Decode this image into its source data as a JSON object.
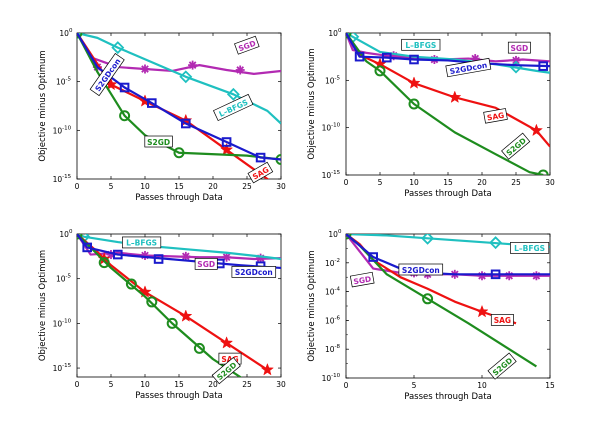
{
  "chart_data": [
    {
      "type": "line",
      "title": "",
      "xlabel": "Passes through Data",
      "ylabel": "Objective minus Optimum",
      "xlim": [
        0,
        30
      ],
      "ylim_log10": [
        -15,
        0
      ],
      "y_scale": "log",
      "xticks": [
        "0",
        "5",
        "10",
        "15",
        "20",
        "25",
        "30"
      ],
      "yticks": [
        {
          "exp": 0,
          "text": "10",
          "sup": "0"
        },
        {
          "exp": -5,
          "text": "10",
          "sup": "-5"
        },
        {
          "exp": -10,
          "text": "10",
          "sup": "-10"
        },
        {
          "exp": -15,
          "text": "10",
          "sup": "-15"
        }
      ],
      "series": [
        {
          "name": "SGD",
          "color": "#b22ab2",
          "marker": "asterisk",
          "x": [
            0,
            2,
            6,
            10,
            14,
            18,
            22,
            26,
            30
          ],
          "y_log10": [
            0,
            -2.5,
            -3.5,
            -3.7,
            -3.9,
            -3.3,
            -3.8,
            -4.2,
            -3.9
          ],
          "mx": [
            3,
            10,
            17,
            24
          ],
          "my": [
            -3.5,
            -3.7,
            -3.3,
            -3.8
          ]
        },
        {
          "name": "L-BFGS",
          "color": "#1fc0c0",
          "marker": "diamond",
          "x": [
            0,
            3,
            6,
            16,
            23,
            28,
            30
          ],
          "y_log10": [
            0,
            -0.5,
            -1.5,
            -4.5,
            -6.3,
            -8.0,
            -9.3
          ],
          "mx": [
            0,
            6,
            16,
            23
          ],
          "my": [
            0,
            -1.5,
            -4.5,
            -6.3
          ]
        },
        {
          "name": "SAG",
          "color": "#ee1111",
          "marker": "star",
          "x": [
            0,
            5,
            10,
            16,
            22,
            30
          ],
          "y_log10": [
            0,
            -5.3,
            -7.0,
            -9.0,
            -12.0,
            -16.0
          ],
          "mx": [
            5,
            10,
            16,
            22
          ],
          "my": [
            -5.3,
            -7.0,
            -9.0,
            -12.0
          ]
        },
        {
          "name": "S2GD",
          "color": "#1e8c1e",
          "marker": "circle",
          "x": [
            0,
            3,
            7,
            10,
            15,
            25,
            30
          ],
          "y_log10": [
            0,
            -4.0,
            -8.5,
            -10.5,
            -12.3,
            -12.6,
            -13.0
          ],
          "mx": [
            0,
            7,
            15,
            30
          ],
          "my": [
            0,
            -8.5,
            -12.3,
            -13.0
          ]
        },
        {
          "name": "S2GDcon",
          "color": "#1a1acc",
          "marker": "square",
          "x": [
            0,
            3,
            7,
            11,
            16,
            22,
            27,
            30
          ],
          "y_log10": [
            0,
            -3.5,
            -5.6,
            -7.2,
            -9.3,
            -11.2,
            -12.8,
            -13.0
          ],
          "mx": [
            7,
            11,
            16,
            22,
            27
          ],
          "my": [
            -5.6,
            -7.2,
            -9.3,
            -11.2,
            -12.8
          ]
        }
      ],
      "labels": [
        {
          "text": "SGD",
          "series": "SGD",
          "x": 25,
          "y": -1.3,
          "angle": -20
        },
        {
          "text": "L–BFGS",
          "series": "L-BFGS",
          "x": 23,
          "y": -7.7,
          "angle": -25
        },
        {
          "text": "S2GDcon",
          "series": "S2GDcon",
          "x": 4.5,
          "y": -4.3,
          "angle": -55
        },
        {
          "text": "S2GD",
          "series": "S2GD",
          "x": 12,
          "y": -11.2,
          "angle": 0
        },
        {
          "text": "SAG",
          "series": "SAG",
          "x": 27,
          "y": -14.5,
          "angle": -30
        }
      ]
    },
    {
      "type": "line",
      "title": "",
      "xlabel": "Passes through Data",
      "ylabel": "Objective minus Optimum",
      "xlim": [
        0,
        30
      ],
      "ylim_log10": [
        -15,
        0
      ],
      "y_scale": "log",
      "xticks": [
        "0",
        "5",
        "10",
        "15",
        "20",
        "25",
        "30"
      ],
      "yticks": [
        {
          "exp": 0,
          "text": "10",
          "sup": "0"
        },
        {
          "exp": -5,
          "text": "10",
          "sup": "-5"
        },
        {
          "exp": -10,
          "text": "10",
          "sup": "-10"
        },
        {
          "exp": -15,
          "text": "10",
          "sup": "-15"
        }
      ],
      "series": [
        {
          "name": "SGD",
          "color": "#b22ab2",
          "marker": "asterisk",
          "x": [
            0,
            1,
            3,
            6,
            10,
            14,
            18,
            22,
            26,
            30
          ],
          "y_log10": [
            0,
            -1.8,
            -2.1,
            -2.4,
            -2.6,
            -2.8,
            -2.7,
            -3.0,
            -2.8,
            -3.0
          ],
          "mx": [
            7,
            13,
            19,
            25
          ],
          "my": [
            -2.4,
            -2.8,
            -2.7,
            -2.9
          ]
        },
        {
          "name": "L-BFGS",
          "color": "#1fc0c0",
          "marker": "diamond",
          "x": [
            0,
            1,
            5,
            10,
            16,
            22,
            28,
            30
          ],
          "y_log10": [
            0,
            -0.4,
            -2.0,
            -2.5,
            -2.8,
            -3.3,
            -4.0,
            -4.2
          ],
          "mx": [
            1,
            25
          ],
          "my": [
            -0.4,
            -3.6
          ]
        },
        {
          "name": "SAG",
          "color": "#ee1111",
          "marker": "star",
          "x": [
            0,
            2,
            5,
            10,
            16,
            22,
            28,
            30
          ],
          "y_log10": [
            0,
            -2.3,
            -3.3,
            -5.3,
            -6.8,
            -7.9,
            -10.3,
            -12.0
          ],
          "mx": [
            5,
            10,
            16,
            28
          ],
          "my": [
            -3.3,
            -5.3,
            -6.8,
            -10.3
          ]
        },
        {
          "name": "S2GD",
          "color": "#1e8c1e",
          "marker": "circle",
          "x": [
            0,
            3,
            5,
            10,
            16,
            22,
            27,
            29
          ],
          "y_log10": [
            0,
            -3.0,
            -4.0,
            -7.5,
            -10.5,
            -12.8,
            -14.7,
            -15.0
          ],
          "mx": [
            0,
            5,
            10,
            29
          ],
          "my": [
            0,
            -4.0,
            -7.5,
            -15.0
          ]
        },
        {
          "name": "S2GDcon",
          "color": "#1a1acc",
          "marker": "square",
          "x": [
            0,
            2,
            6,
            10,
            15,
            20,
            25,
            30
          ],
          "y_log10": [
            0,
            -2.5,
            -2.6,
            -2.8,
            -2.9,
            -3.2,
            -3.4,
            -3.5
          ],
          "mx": [
            2,
            6,
            10,
            29
          ],
          "my": [
            -2.5,
            -2.6,
            -2.8,
            -3.5
          ]
        }
      ],
      "labels": [
        {
          "text": "L–BFGS",
          "series": "L-BFGS",
          "x": 11,
          "y": -1.3,
          "angle": 0
        },
        {
          "text": "SGD",
          "series": "SGD",
          "x": 25.5,
          "y": -1.6,
          "angle": 0
        },
        {
          "text": "S2GDcon",
          "series": "S2GDcon",
          "x": 18,
          "y": -3.7,
          "angle": -10
        },
        {
          "text": "SAG",
          "series": "SAG",
          "x": 22,
          "y": -8.8,
          "angle": -10
        },
        {
          "text": "S2GD",
          "series": "S2GD",
          "x": 25,
          "y": -12.0,
          "angle": -40
        }
      ]
    },
    {
      "type": "line",
      "title": "",
      "xlabel": "Passes through Data",
      "ylabel": "Objective minus Optimum",
      "xlim": [
        0,
        30
      ],
      "ylim_log10": [
        -16,
        0
      ],
      "y_scale": "log",
      "xticks": [
        "0",
        "5",
        "10",
        "15",
        "20",
        "25",
        "30"
      ],
      "yticks": [
        {
          "exp": 0,
          "text": "10",
          "sup": "0"
        },
        {
          "exp": -5,
          "text": "10",
          "sup": "-5"
        },
        {
          "exp": -10,
          "text": "10",
          "sup": "-10"
        },
        {
          "exp": -15,
          "text": "10",
          "sup": "-15"
        }
      ],
      "series": [
        {
          "name": "SGD",
          "color": "#b22ab2",
          "marker": "asterisk",
          "x": [
            0,
            2,
            6,
            10,
            14,
            18,
            22,
            26,
            30
          ],
          "y_log10": [
            0,
            -2.3,
            -2.1,
            -2.4,
            -2.5,
            -2.6,
            -2.6,
            -2.8,
            -2.7
          ],
          "mx": [
            5,
            10,
            16,
            22,
            27
          ],
          "my": [
            -2.3,
            -2.4,
            -2.5,
            -2.6,
            -2.7
          ]
        },
        {
          "name": "L-BFGS",
          "color": "#1fc0c0",
          "marker": "diamond",
          "x": [
            0,
            1,
            6,
            10,
            16,
            22,
            28,
            30
          ],
          "y_log10": [
            0,
            -0.3,
            -0.9,
            -1.3,
            -1.7,
            -2.1,
            -2.6,
            -2.8
          ],
          "mx": [
            1
          ],
          "my": [
            -0.3
          ]
        },
        {
          "name": "SAG",
          "color": "#ee1111",
          "marker": "star",
          "x": [
            0,
            3,
            5,
            10,
            16,
            22,
            28
          ],
          "y_log10": [
            0,
            -2.0,
            -3.5,
            -6.5,
            -9.2,
            -12.2,
            -15.2
          ],
          "mx": [
            4,
            10,
            16,
            22,
            28
          ],
          "my": [
            -2.8,
            -6.5,
            -9.2,
            -12.2,
            -15.2
          ]
        },
        {
          "name": "S2GD",
          "color": "#1e8c1e",
          "marker": "circle",
          "x": [
            0,
            2,
            5,
            10,
            14,
            20,
            26
          ],
          "y_log10": [
            0,
            -1.5,
            -3.8,
            -7.0,
            -10.0,
            -14.0,
            -17.0
          ],
          "mx": [
            0,
            4,
            8,
            11,
            14,
            18,
            26
          ],
          "my": [
            0,
            -3.2,
            -5.6,
            -7.6,
            -10.0,
            -12.8,
            -17.0
          ]
        },
        {
          "name": "S2GDcon",
          "color": "#1a1acc",
          "marker": "square",
          "x": [
            0,
            1.5,
            6,
            12,
            18,
            24,
            30
          ],
          "y_log10": [
            0,
            -1.5,
            -2.3,
            -2.7,
            -3.1,
            -3.5,
            -3.8
          ],
          "mx": [
            1.5,
            6,
            12,
            21,
            27
          ],
          "my": [
            -1.5,
            -2.3,
            -2.8,
            -3.3,
            -3.6
          ]
        }
      ],
      "labels": [
        {
          "text": "L–BFGS",
          "series": "L-BFGS",
          "x": 9.5,
          "y": -1.0,
          "angle": 0
        },
        {
          "text": "SGD",
          "series": "SGD",
          "x": 19,
          "y": -3.4,
          "angle": 0
        },
        {
          "text": "S2GDcon",
          "series": "S2GDcon",
          "x": 26,
          "y": -4.3,
          "angle": 0
        },
        {
          "text": "SAG",
          "series": "SAG",
          "x": 22.5,
          "y": -14.0,
          "angle": 0
        },
        {
          "text": "S2GD",
          "series": "S2GD",
          "x": 22,
          "y": -17.3,
          "angle": -40
        }
      ]
    },
    {
      "type": "line",
      "title": "",
      "xlabel": "Passes through Data",
      "ylabel": "Objective minus Optimum",
      "xlim": [
        0,
        15
      ],
      "ylim_log10": [
        -10,
        0
      ],
      "y_scale": "log",
      "xticks": [
        "0",
        "5",
        "10",
        "15"
      ],
      "yticks": [
        {
          "exp": 0,
          "text": "10",
          "sup": "0"
        },
        {
          "exp": -2,
          "text": "10",
          "sup": "-2"
        },
        {
          "exp": -4,
          "text": "10",
          "sup": "-4"
        },
        {
          "exp": -6,
          "text": "10",
          "sup": "-6"
        },
        {
          "exp": -8,
          "text": "10",
          "sup": "-8"
        },
        {
          "exp": -10,
          "text": "10",
          "sup": "-10"
        }
      ],
      "series": [
        {
          "name": "SGD",
          "color": "#b22ab2",
          "marker": "asterisk",
          "x": [
            0,
            1,
            2,
            4,
            6,
            8,
            10,
            12,
            14,
            15
          ],
          "y_log10": [
            0,
            -1.2,
            -2.4,
            -2.7,
            -2.8,
            -2.8,
            -2.9,
            -2.9,
            -2.9,
            -2.9
          ],
          "mx": [
            5,
            6,
            8,
            10,
            12,
            14
          ],
          "my": [
            -2.7,
            -2.8,
            -2.8,
            -2.9,
            -2.9,
            -2.9
          ]
        },
        {
          "name": "L-BFGS",
          "color": "#1fc0c0",
          "marker": "diamond",
          "x": [
            0,
            3,
            6,
            9,
            12,
            15
          ],
          "y_log10": [
            0,
            -0.1,
            -0.3,
            -0.5,
            -0.7,
            -0.9
          ],
          "mx": [
            6,
            11
          ],
          "my": [
            -0.3,
            -0.6
          ]
        },
        {
          "name": "SAG",
          "color": "#ee1111",
          "marker": "star",
          "x": [
            0,
            1,
            2,
            4,
            6,
            8,
            10,
            12.5
          ],
          "y_log10": [
            0,
            -0.7,
            -1.8,
            -3.0,
            -3.8,
            -4.7,
            -5.4,
            -6.2
          ],
          "mx": [
            10
          ],
          "my": [
            -5.4
          ]
        },
        {
          "name": "S2GD",
          "color": "#1e8c1e",
          "marker": "circle",
          "x": [
            0,
            1,
            3,
            6,
            9,
            12,
            14
          ],
          "y_log10": [
            0,
            -0.8,
            -2.8,
            -4.5,
            -6.2,
            -8.0,
            -9.2
          ],
          "mx": [
            0,
            6
          ],
          "my": [
            0,
            -4.5
          ]
        },
        {
          "name": "S2GDcon",
          "color": "#1a1acc",
          "marker": "square",
          "x": [
            0,
            1,
            2,
            4,
            6,
            8,
            10,
            12,
            14,
            15
          ],
          "y_log10": [
            0,
            -0.8,
            -1.6,
            -2.4,
            -2.7,
            -2.8,
            -2.8,
            -2.8,
            -2.8,
            -2.8
          ],
          "mx": [
            2,
            11
          ],
          "my": [
            -1.6,
            -2.8
          ]
        }
      ],
      "labels": [
        {
          "text": "L–BFGS",
          "series": "L-BFGS",
          "x": 13.5,
          "y": -1.0,
          "angle": 0
        },
        {
          "text": "SGD",
          "series": "SGD",
          "x": 1.2,
          "y": -3.2,
          "angle": -10
        },
        {
          "text": "S2GDcon",
          "series": "S2GDcon",
          "x": 5.5,
          "y": -2.5,
          "angle": 0
        },
        {
          "text": "SAG",
          "series": "SAG",
          "x": 11.5,
          "y": -6.0,
          "angle": 0
        },
        {
          "text": "S2GD",
          "series": "S2GD",
          "x": 11.5,
          "y": -9.2,
          "angle": -40
        }
      ]
    }
  ]
}
